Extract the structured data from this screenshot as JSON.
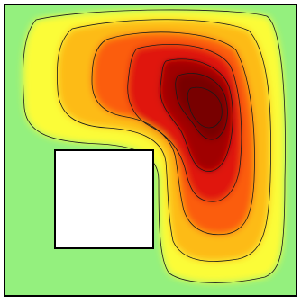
{
  "figure": {
    "kind": "filled-contour-plot",
    "domain_shape": "square cavity with rectangular obstacle",
    "colormap_stops": [
      "#94f07e",
      "#fbfc38",
      "#fdbb16",
      "#fb5d08",
      "#e0130a",
      "#a00503",
      "#780000"
    ],
    "contour_line_color": "#1a1a1a",
    "border_color": "#000000",
    "obstacle_fill": "#ffffff",
    "background_fill": "#94f07e",
    "contour_levels": 7,
    "grid": false,
    "legend": false
  }
}
